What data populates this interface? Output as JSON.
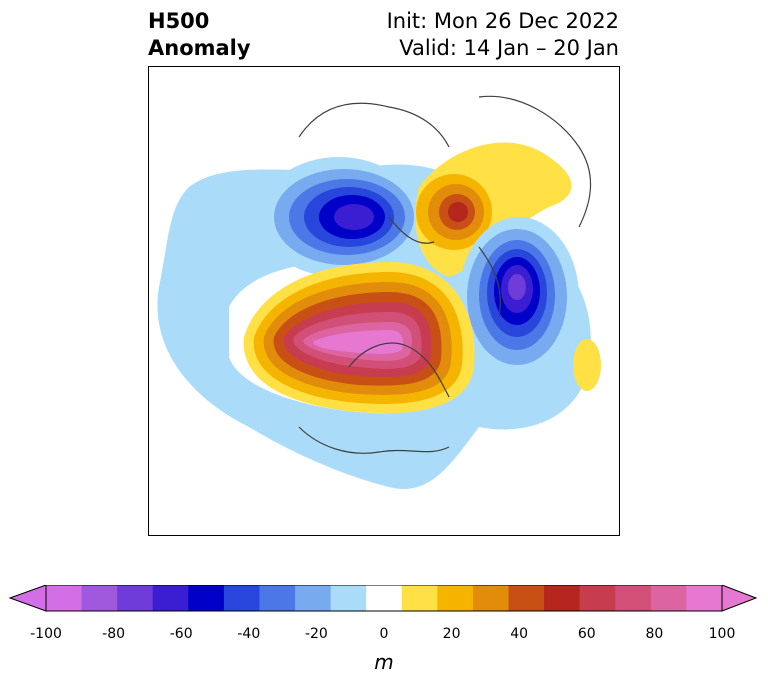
{
  "title": {
    "line1": "H500",
    "line2": "Anomaly",
    "init": "Init: Mon 26 Dec 2022",
    "valid": "Valid: 14 Jan – 20 Jan"
  },
  "colorbar": {
    "unit": "m",
    "levels": [
      -100,
      -90,
      -80,
      -70,
      -60,
      -50,
      -40,
      -30,
      -20,
      -10,
      10,
      20,
      30,
      40,
      50,
      60,
      70,
      80,
      90,
      100
    ],
    "colors": [
      "#d46ee6",
      "#a058dc",
      "#6e3cd8",
      "#3c1ed2",
      "#0000c8",
      "#2846dc",
      "#4b78e6",
      "#78aaf0",
      "#aadcfa",
      "#ffffff",
      "#ffe146",
      "#f5b400",
      "#e18c0a",
      "#c85014",
      "#b4261e",
      "#c83c50",
      "#d25078",
      "#dc64a0",
      "#e678d2"
    ],
    "ticks": [
      "-100",
      "-80",
      "-60",
      "-40",
      "-20",
      "0",
      "20",
      "40",
      "60",
      "80",
      "100"
    ]
  },
  "map": {
    "features": [
      "europe-ridge",
      "pacific-trough",
      "north-america-ridge",
      "atlantic-trough",
      "asia-ridge"
    ]
  }
}
